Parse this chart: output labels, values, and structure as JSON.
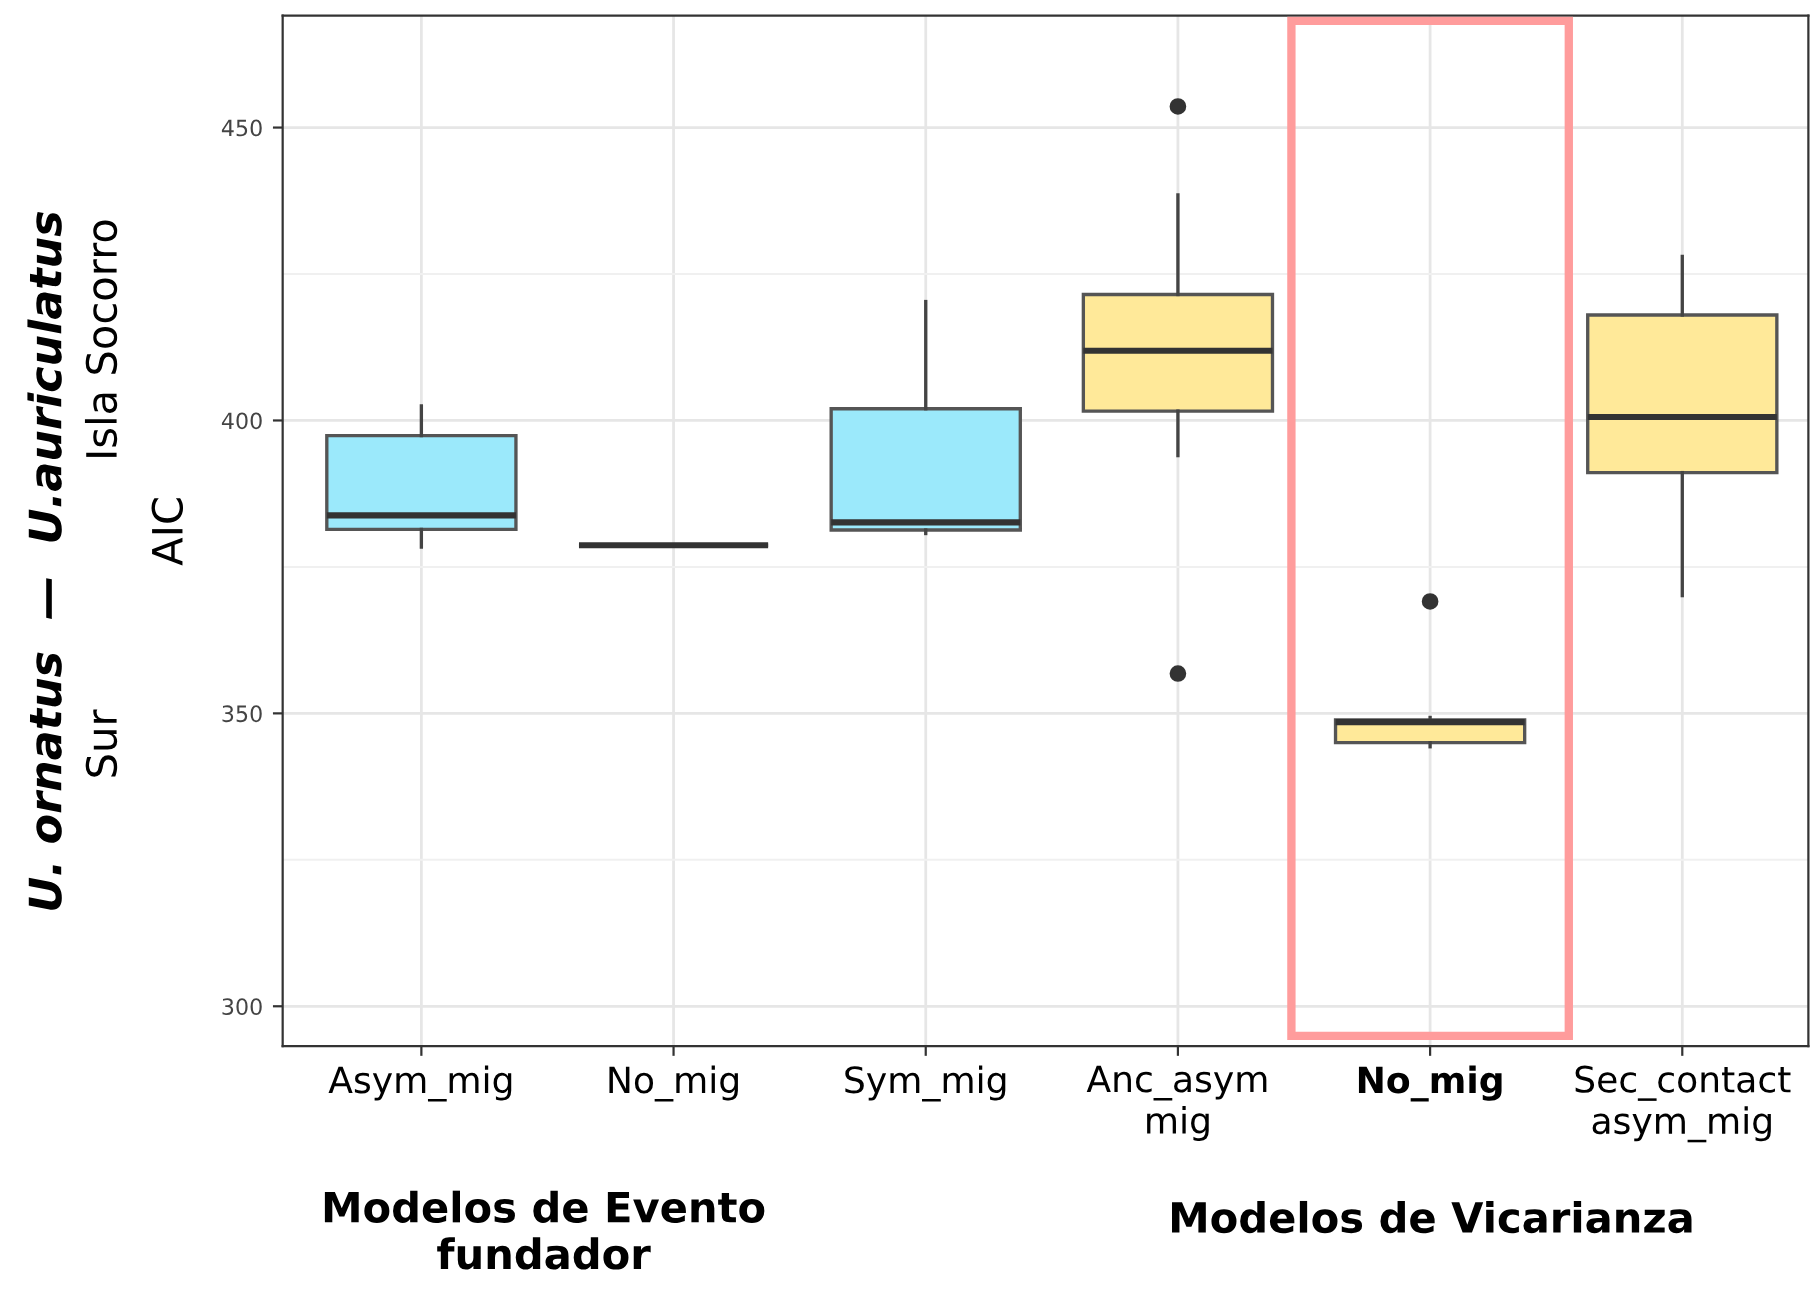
{
  "chart_data": {
    "type": "box",
    "ylabel": "AIC",
    "categories": [
      "Asym_mig",
      "No_mig",
      "Sym_mig",
      "Anc_asym\nmig",
      "No_mig",
      "Sec_contact\nasym_mig"
    ],
    "colors": [
      "#9be9fb",
      "#333333",
      "#9be9fb",
      "#ffe999",
      "#ffe999",
      "#ffe999"
    ],
    "boxes": [
      {
        "low": 378.4,
        "q1": 381.4,
        "median": 383.8,
        "q3": 397.4,
        "high": 402.5
      },
      {
        "low": 378.7,
        "q1": 378.7,
        "median": 378.7,
        "q3": 378.7,
        "high": 378.7
      },
      {
        "low": 380.7,
        "q1": 381.3,
        "median": 382.6,
        "q3": 402.0,
        "high": 420.3
      },
      {
        "low": 394.0,
        "q1": 401.6,
        "median": 411.9,
        "q3": 421.5,
        "high": 438.5,
        "outliers": [
          453.6,
          356.8
        ]
      },
      {
        "low": 344.3,
        "q1": 345.0,
        "median": 348.5,
        "q3": 348.9,
        "high": 349.3,
        "outliers": [
          369.1
        ]
      },
      {
        "low": 370.1,
        "q1": 391.1,
        "median": 400.6,
        "q3": 418.0,
        "high": 428.0
      }
    ],
    "ylim": [
      293.2,
      469.1
    ],
    "yticks": [
      300,
      350,
      400,
      450
    ],
    "grid": true,
    "annotations": [
      "Modelos de Evento\nfundador",
      "Modelos de Vicarianza",
      "U. ornatus  —  U.auriculatus",
      "Sur",
      "Isla Socorro"
    ]
  }
}
